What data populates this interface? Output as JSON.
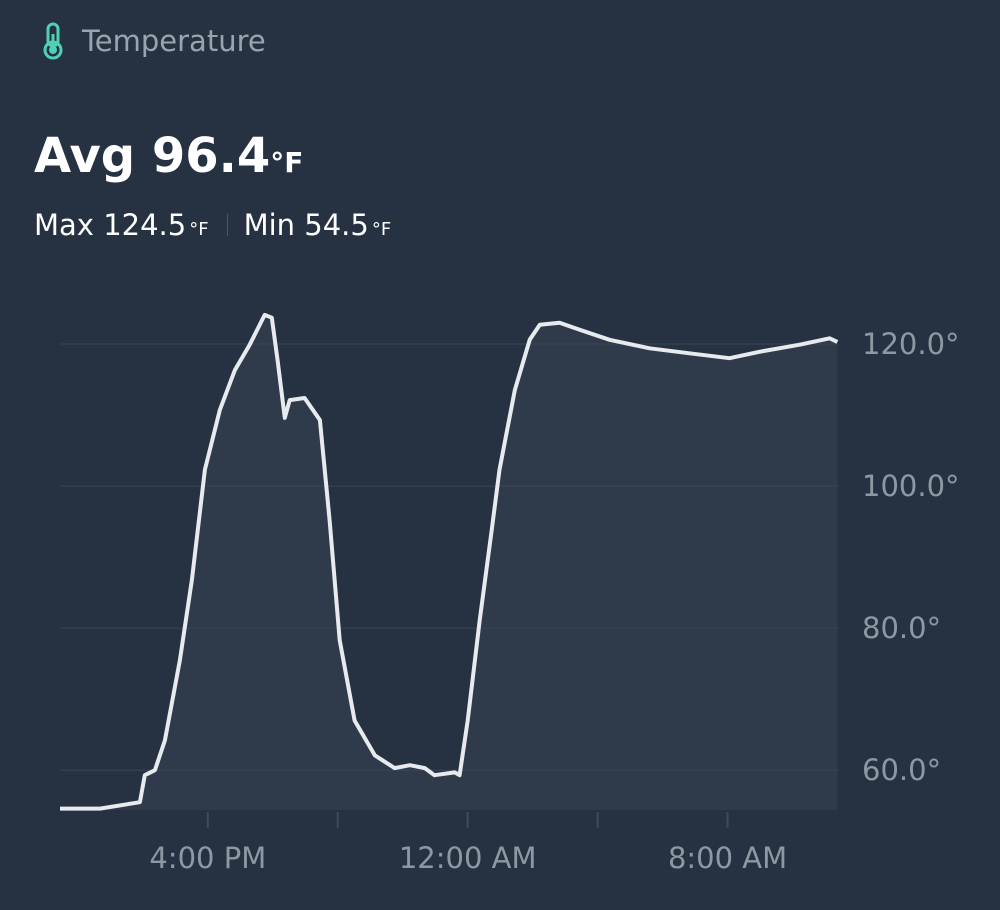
{
  "header": {
    "title": "Temperature"
  },
  "stats": {
    "avg_label": "Avg",
    "avg": 96.4,
    "avg_unit": "°F",
    "max_label": "Max",
    "max": 124.5,
    "max_unit": "°F",
    "min_label": "Min",
    "min": 54.5,
    "min_unit": "°F"
  },
  "chart_data": {
    "type": "line",
    "x": [
      -12.55,
      -11.32,
      -10.09,
      -9.94,
      -9.63,
      -9.32,
      -8.86,
      -8.49,
      -8.09,
      -7.63,
      -7.17,
      -6.71,
      -6.25,
      -6.03,
      -5.85,
      -5.63,
      -5.48,
      -5.02,
      -4.55,
      -4.25,
      -3.94,
      -3.48,
      -2.86,
      -2.25,
      -1.78,
      -1.32,
      -1.02,
      -0.4,
      -0.25,
      0,
      0.37,
      0.74,
      0.98,
      1.45,
      1.91,
      2.22,
      2.83,
      3.45,
      4.37,
      5.6,
      6.83,
      8.06,
      8.98,
      10.22,
      11.14,
      11.38
    ],
    "values": [
      54.6,
      54.6,
      55.5,
      59.3,
      60,
      64.2,
      75.5,
      86.8,
      102.3,
      110.7,
      116.3,
      119.9,
      124.1,
      123.7,
      117.7,
      109.6,
      112.1,
      112.4,
      109.3,
      95.2,
      78.3,
      67.0,
      62.1,
      60.3,
      60.7,
      60.3,
      59.3,
      59.7,
      59.3,
      67.0,
      81.1,
      93.8,
      102.3,
      113.5,
      120.6,
      122.7,
      123.0,
      122.0,
      120.6,
      119.4,
      118.7,
      118.0,
      118.9,
      119.9,
      120.8,
      120.3
    ],
    "color": "#e8ebee",
    "fill_color": "#2f3a4b",
    "xlim": [
      -12.55,
      11.4
    ],
    "xticks": [
      {
        "value": -8,
        "label": "4:00 PM"
      },
      {
        "value": 0,
        "label": "12:00 AM"
      },
      {
        "value": 8,
        "label": "8:00 AM"
      }
    ],
    "xminorticks": [
      -4,
      4
    ],
    "ylim": [
      54.4,
      125
    ],
    "yticks": [
      {
        "value": 60,
        "label": "60.0°"
      },
      {
        "value": 80,
        "label": "80.0°"
      },
      {
        "value": 100,
        "label": "100.0°"
      },
      {
        "value": 120,
        "label": "120.0°"
      }
    ],
    "grid": true
  }
}
